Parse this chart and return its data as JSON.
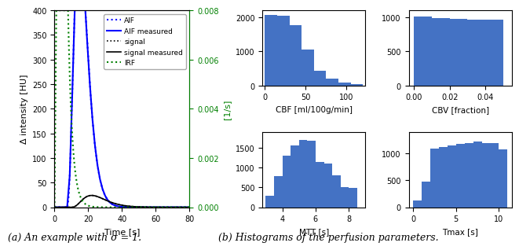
{
  "left_panel": {
    "ylim_left": [
      0,
      400
    ],
    "ylim_right": [
      0.0,
      0.008
    ],
    "xlim": [
      0,
      80
    ],
    "xlabel": "Time [s]",
    "ylabel_left": "Δ intensity [HU]",
    "ylabel_right": "[1/s]",
    "yticks_right": [
      0.0,
      0.002,
      0.004,
      0.006,
      0.008
    ],
    "ytick_labels_right": [
      "0.000",
      "0.002",
      "0.004",
      "0.006",
      "0.008"
    ],
    "legend_labels": [
      "AIF",
      "AIF measured",
      "signal",
      "signal measured",
      "IRF"
    ]
  },
  "cbf": {
    "bin_edges": [
      0,
      15,
      30,
      45,
      60,
      75,
      90,
      105,
      120
    ],
    "counts": [
      2060,
      2040,
      1760,
      1060,
      430,
      200,
      90,
      40
    ],
    "xlabel": "CBF [ml/100g/min]",
    "xlim": [
      -3,
      123
    ],
    "ylim": [
      0,
      2200
    ],
    "xticks": [
      0,
      50,
      100
    ]
  },
  "cbv": {
    "bin_edges": [
      0.0,
      0.01,
      0.02,
      0.03,
      0.04,
      0.05
    ],
    "counts": [
      1010,
      985,
      975,
      965,
      960
    ],
    "xlabel": "CBV [fraction]",
    "xlim": [
      -0.003,
      0.055
    ],
    "ylim": [
      0,
      1100
    ],
    "xticks": [
      0.0,
      0.02,
      0.04
    ]
  },
  "mtt": {
    "bin_edges": [
      3.0,
      3.5,
      4.0,
      4.5,
      5.0,
      5.5,
      6.0,
      6.5,
      7.0,
      7.5,
      8.0,
      8.5
    ],
    "counts": [
      290,
      780,
      1310,
      1560,
      1700,
      1680,
      1150,
      1100,
      800,
      510,
      480
    ],
    "xlabel": "MTT [s]",
    "xlim": [
      2.8,
      9.0
    ],
    "ylim": [
      0,
      1900
    ],
    "xticks": [
      4,
      6,
      8
    ]
  },
  "tmax": {
    "bin_edges": [
      0,
      1,
      2,
      3,
      4,
      5,
      6,
      7,
      8,
      9,
      10,
      11
    ],
    "counts": [
      120,
      480,
      1100,
      1120,
      1150,
      1180,
      1200,
      1220,
      1200,
      1190,
      1080
    ],
    "xlabel": "Tmax [s]",
    "xlim": [
      -0.5,
      11.5
    ],
    "ylim": [
      0,
      1400
    ],
    "xticks": [
      0,
      5,
      10
    ]
  },
  "caption_left": "(a) An example with σ = 1.",
  "caption_right": "(b) Histograms of the perfusion parameters.",
  "bar_color": "#4472C4",
  "blue_color": "blue",
  "green_color": "green",
  "black_color": "black"
}
